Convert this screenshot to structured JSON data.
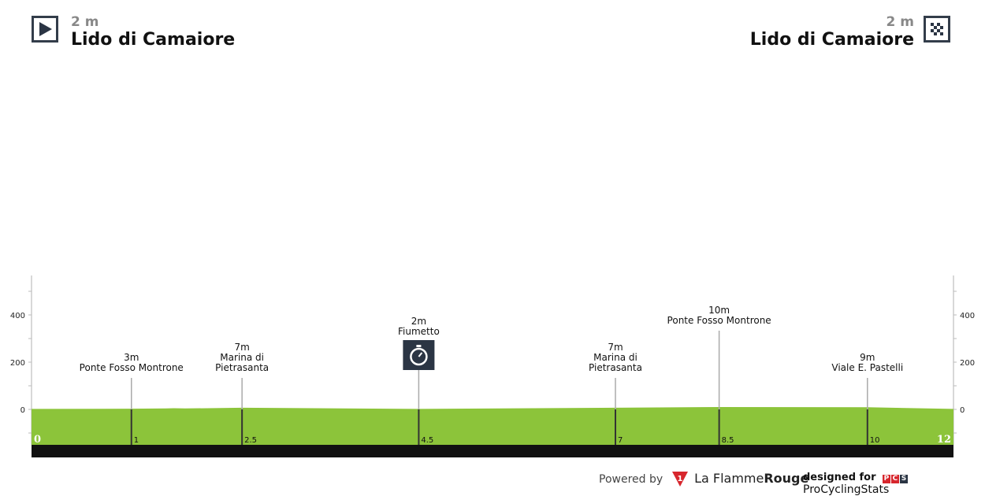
{
  "header": {
    "start": {
      "altitude": "2 m",
      "name": "Lido di Camaiore",
      "icon": "start-play-icon"
    },
    "finish": {
      "altitude": "2 m",
      "name": "Lido di Camaiore",
      "icon": "checkered-flag-icon"
    }
  },
  "chart_data": {
    "type": "area",
    "title": "",
    "xlabel": "",
    "ylabel": "",
    "xlim": [
      0,
      12
    ],
    "ylim": [
      -150,
      567
    ],
    "y_ticks": [
      0,
      200,
      400
    ],
    "y_minor_ticks": [
      -100,
      100,
      300,
      500
    ],
    "x_start_label": "0",
    "x_end_label": "12",
    "fill_color": "#8cc43a",
    "base_color": "#111111",
    "profile": [
      [
        0,
        2
      ],
      [
        1.3,
        3
      ],
      [
        1.75,
        4
      ],
      [
        1.85,
        5
      ],
      [
        2.0,
        4
      ],
      [
        2.74,
        7
      ],
      [
        5.04,
        2
      ],
      [
        7.6,
        7
      ],
      [
        8.95,
        10
      ],
      [
        10.88,
        9
      ],
      [
        12,
        2
      ]
    ],
    "markers": [
      {
        "km": 1.3,
        "km_label": "1",
        "altitude": "3m",
        "name": [
          "Ponte Fosso Montrone"
        ]
      },
      {
        "km": 2.74,
        "km_label": "2.5",
        "altitude": "7m",
        "name": [
          "Marina di",
          "Pietrasanta"
        ]
      },
      {
        "km": 5.04,
        "km_label": "4.5",
        "altitude": "2m",
        "name": [
          "Fiumetto"
        ],
        "icon": "stopwatch-icon",
        "icon_color": "#2b3544"
      },
      {
        "km": 7.6,
        "km_label": "7",
        "altitude": "7m",
        "name": [
          "Marina di",
          "Pietrasanta"
        ]
      },
      {
        "km": 8.95,
        "km_label": "8.5",
        "altitude": "10m",
        "name": [
          "Ponte Fosso Montrone"
        ]
      },
      {
        "km": 10.88,
        "km_label": "10",
        "altitude": "9m",
        "name": [
          "Viale E. Pastelli"
        ]
      }
    ]
  },
  "footer": {
    "powered_by": "Powered by",
    "brand_light": "La Flamme",
    "brand_bold": "Rouge",
    "brand_badge": "1",
    "designed_for": "designed for",
    "pcs_letters": [
      "P",
      "C",
      "S"
    ],
    "pcs_name": "ProCyclingStats",
    "brand_color": "#d7262d"
  }
}
